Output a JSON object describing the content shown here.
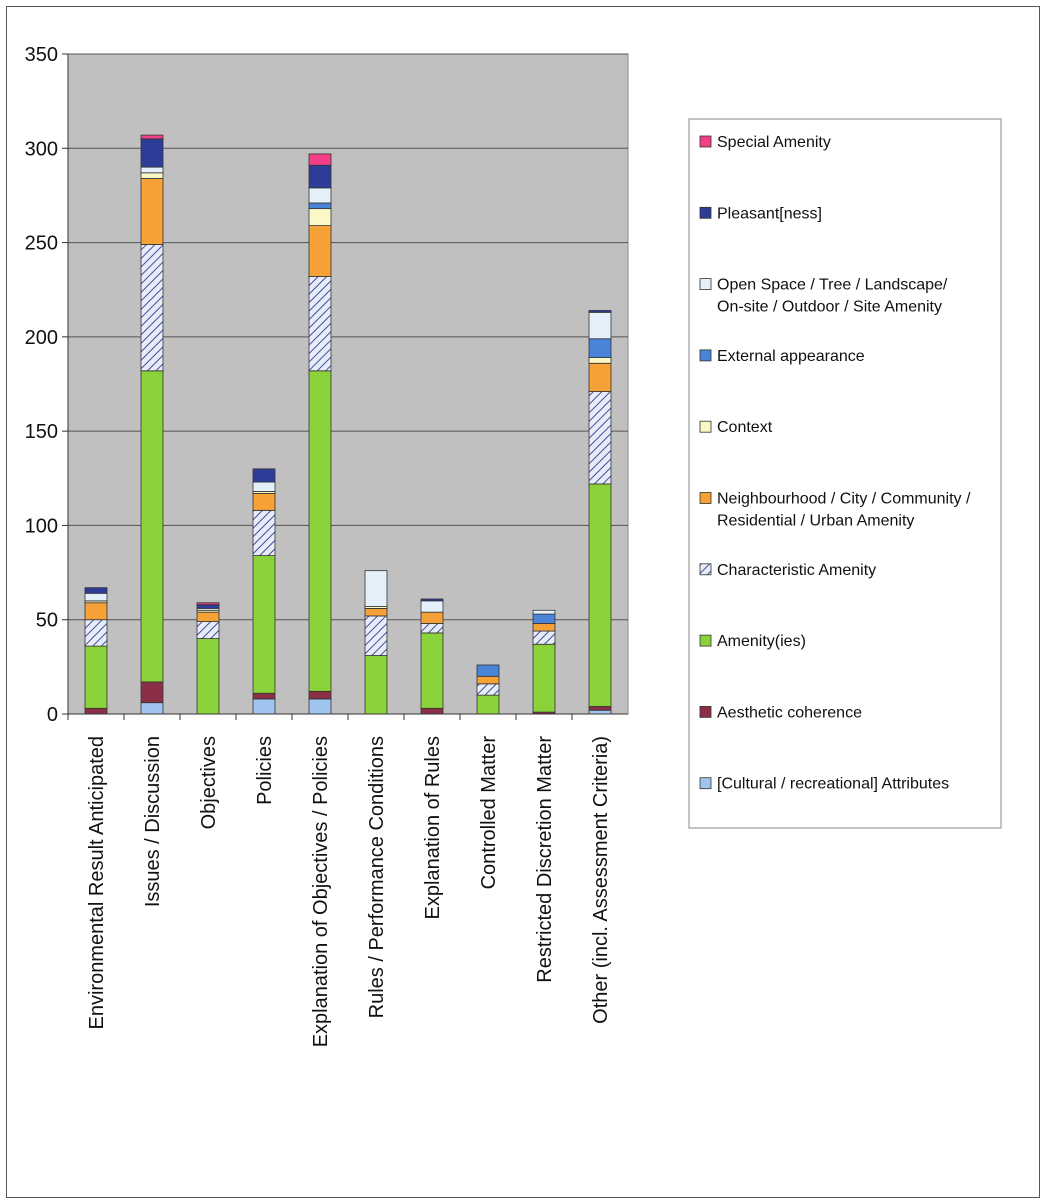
{
  "chart_data": {
    "type": "bar",
    "stacked": true,
    "title": "",
    "xlabel": "",
    "ylabel": "",
    "ylim": [
      0,
      350
    ],
    "yticks": [
      0,
      50,
      100,
      150,
      200,
      250,
      300,
      350
    ],
    "grid": true,
    "legend_position": "right",
    "categories": [
      "Environmental Result Anticipated",
      "Issues / Discussion",
      "Objectives",
      "Policies",
      "Explanation of Objectives / Policies",
      "Rules / Performance Conditions",
      "Explanation of Rules",
      "Controlled Matter",
      "Restricted Discretion Matter",
      "Other (incl. Assessment Criteria)"
    ],
    "series": [
      {
        "name": "[Cultural / recreational] Attributes",
        "color": "#9fc4ef",
        "pattern": "solid",
        "values": [
          0,
          6,
          0,
          8,
          8,
          0,
          0,
          0,
          0,
          2
        ]
      },
      {
        "name": "Aesthetic coherence",
        "color": "#8a2f45",
        "pattern": "solid",
        "values": [
          3,
          11,
          0,
          3,
          4,
          0,
          3,
          0,
          1,
          2
        ]
      },
      {
        "name": "Amenity(ies)",
        "color": "#8bd13a",
        "pattern": "solid",
        "values": [
          33,
          165,
          40,
          73,
          170,
          31,
          40,
          10,
          36,
          118
        ]
      },
      {
        "name": "Characteristic Amenity",
        "color": "#c9d2ef",
        "pattern": "hatch",
        "values": [
          14,
          67,
          9,
          24,
          50,
          21,
          5,
          6,
          7,
          49
        ]
      },
      {
        "name": "Neighbourhood / City / Community / Residential / Urban Amenity",
        "color": "#f5a138",
        "pattern": "solid",
        "values": [
          9,
          35,
          5,
          9,
          27,
          4,
          6,
          4,
          4,
          15
        ]
      },
      {
        "name": "Context",
        "color": "#fbf8c8",
        "pattern": "solid",
        "values": [
          1,
          3,
          1,
          1,
          9,
          1,
          0,
          0,
          0,
          3
        ]
      },
      {
        "name": "External appearance",
        "color": "#4a84d8",
        "pattern": "solid",
        "values": [
          0,
          0,
          0,
          0,
          3,
          0,
          0,
          6,
          5,
          10
        ]
      },
      {
        "name": "Open Space / Tree / Landscape/ On-site / Outdoor / Site Amenity",
        "color": "#e4f1fb",
        "pattern": "solid",
        "values": [
          4,
          3,
          1,
          5,
          8,
          19,
          6,
          0,
          2,
          14
        ]
      },
      {
        "name": "Pleasant[ness]",
        "color": "#2d3d97",
        "pattern": "solid",
        "values": [
          3,
          15,
          2,
          7,
          12,
          0,
          1,
          0,
          0,
          1
        ]
      },
      {
        "name": "Special Amenity",
        "color": "#f23f87",
        "pattern": "solid",
        "values": [
          0,
          2,
          1,
          0,
          6,
          0,
          0,
          0,
          0,
          0
        ]
      }
    ],
    "legend_order": [
      "Special Amenity",
      "Pleasant[ness]",
      "Open Space / Tree / Landscape/ On-site / Outdoor / Site Amenity",
      "External appearance",
      "Context",
      "Neighbourhood / City / Community / Residential / Urban Amenity",
      "Characteristic Amenity",
      "Amenity(ies)",
      "Aesthetic coherence",
      "[Cultural / recreational] Attributes"
    ],
    "plot_background": "#c0c0c0"
  }
}
